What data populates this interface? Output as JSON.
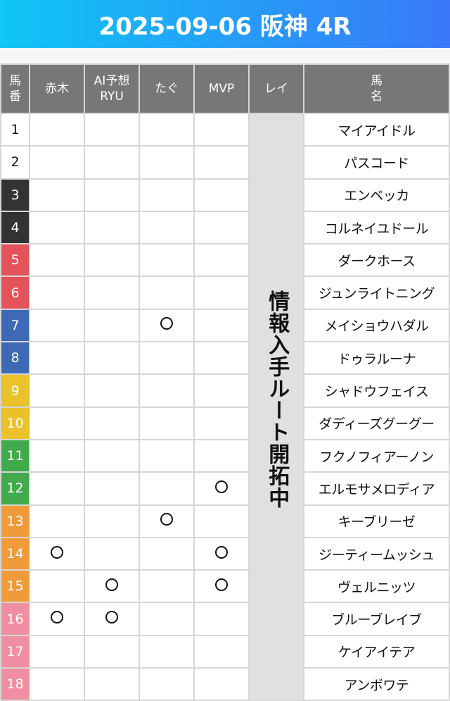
{
  "title": "2025-09-06 阪神 4R",
  "headers": {
    "num": "馬\n番",
    "akagi": "赤木",
    "ai": "AI予想\nRYU",
    "tagu": "たぐ",
    "mvp": "MVP",
    "rei": "レイ",
    "name": "馬\n名"
  },
  "rei_note": "情報入手ルート開拓中",
  "mark_symbol": "○",
  "rows": [
    {
      "num": "1",
      "name": "マイアイドル",
      "color": "#ffffff",
      "text": "#111111",
      "akagi": "",
      "ai": "",
      "tagu": "",
      "mvp": ""
    },
    {
      "num": "2",
      "name": "パスコード",
      "color": "#ffffff",
      "text": "#111111",
      "akagi": "",
      "ai": "",
      "tagu": "",
      "mvp": ""
    },
    {
      "num": "3",
      "name": "エンベッカ",
      "color": "#333333",
      "text": "#ffffff",
      "akagi": "",
      "ai": "",
      "tagu": "",
      "mvp": ""
    },
    {
      "num": "4",
      "name": "コルネイユドール",
      "color": "#333333",
      "text": "#ffffff",
      "akagi": "",
      "ai": "",
      "tagu": "",
      "mvp": ""
    },
    {
      "num": "5",
      "name": "ダークホース",
      "color": "#e4525a",
      "text": "#ffffff",
      "akagi": "",
      "ai": "",
      "tagu": "",
      "mvp": ""
    },
    {
      "num": "6",
      "name": "ジュンライトニング",
      "color": "#e4525a",
      "text": "#ffffff",
      "akagi": "",
      "ai": "",
      "tagu": "",
      "mvp": ""
    },
    {
      "num": "7",
      "name": "メイショウハダル",
      "color": "#3d69b7",
      "text": "#ffffff",
      "akagi": "",
      "ai": "",
      "tagu": "○",
      "mvp": ""
    },
    {
      "num": "8",
      "name": "ドゥラルーナ",
      "color": "#3d69b7",
      "text": "#ffffff",
      "akagi": "",
      "ai": "",
      "tagu": "",
      "mvp": ""
    },
    {
      "num": "9",
      "name": "シャドウフェイス",
      "color": "#e9c22c",
      "text": "#ffffff",
      "akagi": "",
      "ai": "",
      "tagu": "",
      "mvp": ""
    },
    {
      "num": "10",
      "name": "ダディーズグーグー",
      "color": "#e9c22c",
      "text": "#ffffff",
      "akagi": "",
      "ai": "",
      "tagu": "",
      "mvp": ""
    },
    {
      "num": "11",
      "name": "フクノフィアーノン",
      "color": "#41ab4c",
      "text": "#ffffff",
      "akagi": "",
      "ai": "",
      "tagu": "",
      "mvp": ""
    },
    {
      "num": "12",
      "name": "エルモサメロディア",
      "color": "#41ab4c",
      "text": "#ffffff",
      "akagi": "",
      "ai": "",
      "tagu": "",
      "mvp": "○"
    },
    {
      "num": "13",
      "name": "キーブリーゼ",
      "color": "#f09a3a",
      "text": "#ffffff",
      "akagi": "",
      "ai": "",
      "tagu": "○",
      "mvp": ""
    },
    {
      "num": "14",
      "name": "ジーティームッシュ",
      "color": "#f09a3a",
      "text": "#ffffff",
      "akagi": "○",
      "ai": "",
      "tagu": "",
      "mvp": "○"
    },
    {
      "num": "15",
      "name": "ヴェルニッツ",
      "color": "#f09a3a",
      "text": "#ffffff",
      "akagi": "",
      "ai": "○",
      "tagu": "",
      "mvp": "○"
    },
    {
      "num": "16",
      "name": "ブルーブレイブ",
      "color": "#f08ea2",
      "text": "#ffffff",
      "akagi": "○",
      "ai": "○",
      "tagu": "",
      "mvp": ""
    },
    {
      "num": "17",
      "name": "ケイアイテア",
      "color": "#f08ea2",
      "text": "#ffffff",
      "akagi": "",
      "ai": "",
      "tagu": "",
      "mvp": ""
    },
    {
      "num": "18",
      "name": "アンボワテ",
      "color": "#f08ea2",
      "text": "#ffffff",
      "akagi": "",
      "ai": "",
      "tagu": "",
      "mvp": ""
    }
  ]
}
